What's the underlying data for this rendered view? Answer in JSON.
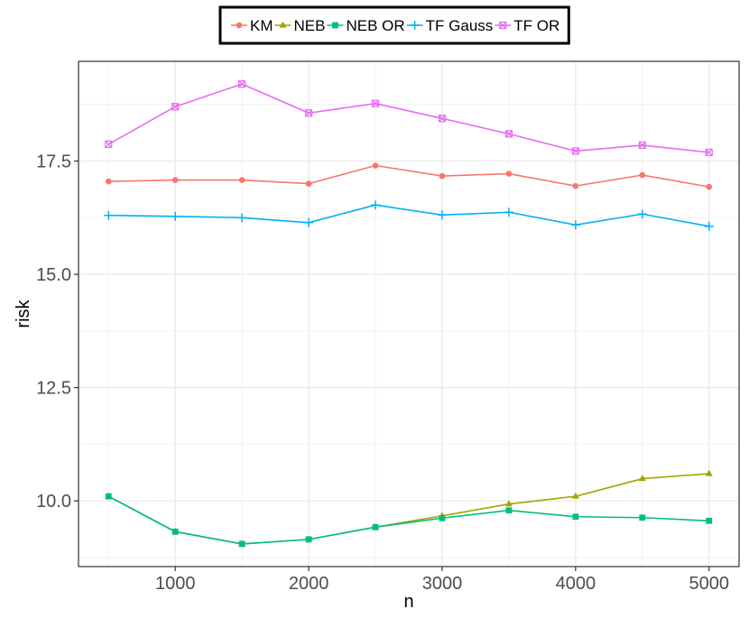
{
  "chart_data": {
    "type": "line",
    "xlabel": "n",
    "ylabel": "risk",
    "x": [
      500,
      1000,
      1500,
      2000,
      2500,
      3000,
      3500,
      4000,
      4500,
      5000
    ],
    "xticks": [
      1000,
      2000,
      3000,
      4000,
      5000
    ],
    "xtick_labels": [
      "1000",
      "2000",
      "3000",
      "4000",
      "5000"
    ],
    "yticks": [
      10.0,
      12.5,
      15.0,
      17.5
    ],
    "ytick_labels": [
      "10.0",
      "12.5",
      "15.0",
      "17.5"
    ],
    "xlim": [
      275,
      5225
    ],
    "ylim": [
      8.55,
      19.7
    ],
    "grid": true,
    "legend_position": "top",
    "series": [
      {
        "name": "KM",
        "color": "#F8766D",
        "marker": "circle",
        "values": [
          17.05,
          17.08,
          17.08,
          17.0,
          17.4,
          17.17,
          17.22,
          16.95,
          17.19,
          16.93
        ]
      },
      {
        "name": "NEB",
        "color": "#A3A500",
        "marker": "triangle",
        "values": [
          10.1,
          9.32,
          9.05,
          9.15,
          9.42,
          9.67,
          9.93,
          10.1,
          10.49,
          10.6
        ]
      },
      {
        "name": "NEB OR",
        "color": "#00BF7D",
        "marker": "square",
        "values": [
          10.1,
          9.32,
          9.05,
          9.15,
          9.42,
          9.62,
          9.79,
          9.65,
          9.63,
          9.56
        ]
      },
      {
        "name": "TF Gauss",
        "color": "#00B0F6",
        "marker": "plus",
        "values": [
          16.3,
          16.28,
          16.25,
          16.14,
          16.53,
          16.31,
          16.37,
          16.09,
          16.33,
          16.06
        ]
      },
      {
        "name": "TF OR",
        "color": "#E76BF3",
        "marker": "boxx",
        "values": [
          17.87,
          18.7,
          19.2,
          18.56,
          18.77,
          18.44,
          18.1,
          17.72,
          17.85,
          17.69
        ]
      }
    ]
  }
}
